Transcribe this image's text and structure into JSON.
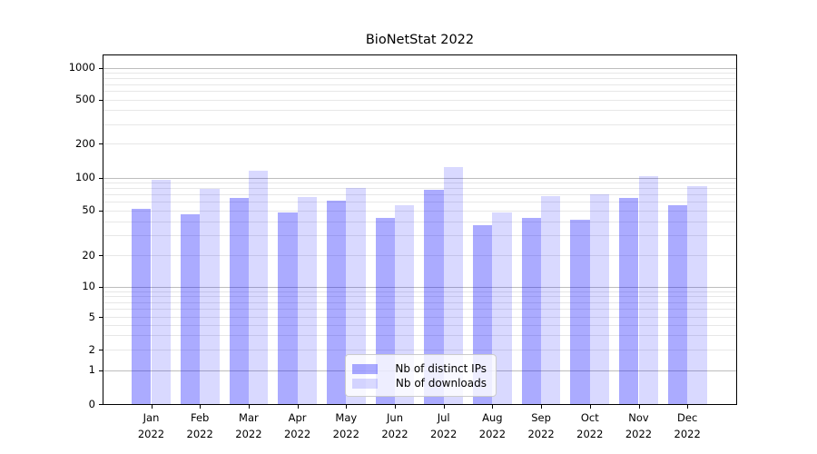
{
  "title": "BioNetStat 2022",
  "chart_data": {
    "type": "bar",
    "categories": [
      "Jan 2022",
      "Feb 2022",
      "Mar 2022",
      "Apr 2022",
      "May 2022",
      "Jun 2022",
      "Jul 2022",
      "Aug 2022",
      "Sep 2022",
      "Oct 2022",
      "Nov 2022",
      "Dec 2022"
    ],
    "series": [
      {
        "name": "Nb of distinct IPs",
        "color": "rgba(0,0,255,0.33)",
        "values": [
          52,
          46,
          65,
          48,
          61,
          43,
          78,
          37,
          43,
          41,
          65,
          56
        ]
      },
      {
        "name": "Nb of downloads",
        "color": "rgba(0,0,255,0.15)",
        "values": [
          96,
          79,
          115,
          66,
          80,
          56,
          123,
          48,
          68,
          70,
          103,
          83
        ]
      }
    ],
    "title": "BioNetStat 2022",
    "xlabel": "",
    "ylabel": "",
    "yticks": [
      0,
      1,
      2,
      5,
      10,
      20,
      50,
      100,
      200,
      500,
      1000
    ],
    "ylim": [
      0,
      1400
    ],
    "yscale": "log-like (compressed near zero)",
    "grid": true,
    "legend_position": "lower center (inside plot)"
  },
  "legend": {
    "items": [
      "Nb of distinct IPs",
      "Nb of downloads"
    ],
    "background": "rgba(255,255,255,0.8)",
    "border_color": "#cccccc"
  },
  "colors": {
    "bar_distinct_ips": "rgba(0,0,255,0.33)",
    "bar_downloads": "rgba(0,0,255,0.15)",
    "grid_major": "#bdbdbd",
    "grid_minor": "#e7e7e7",
    "axis": "#000000",
    "background": "#ffffff",
    "text": "#000000"
  }
}
